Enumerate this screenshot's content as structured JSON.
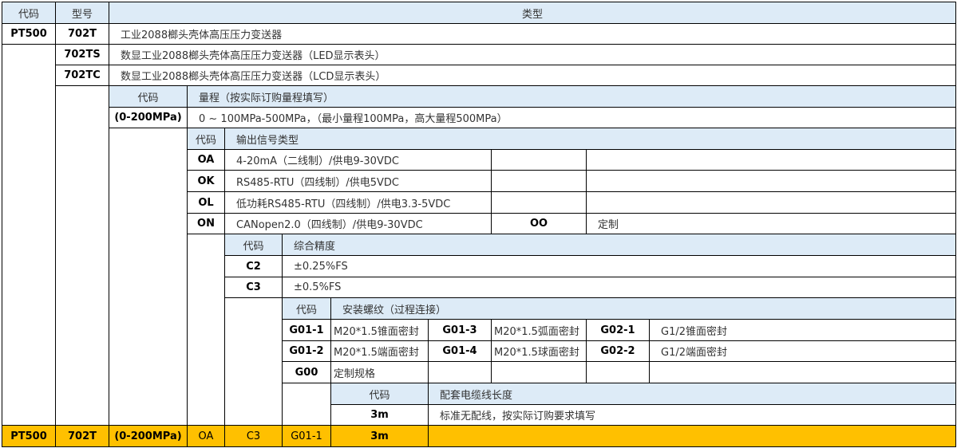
{
  "colors": {
    "header_bg": "#ddebf7",
    "example_row_bg": "#ffc000",
    "border": "#000000"
  },
  "header": {
    "code_label": "代码",
    "model_label": "型号",
    "type_label": "类型"
  },
  "series_code": "PT500",
  "models": [
    {
      "code": "702T",
      "desc": "工业2088榔头壳体高压压力变送器"
    },
    {
      "code": "702TS",
      "desc": "数显工业2088榔头壳体高压压力变送器（LED显示表头）"
    },
    {
      "code": "702TC",
      "desc": "数显工业2088榔头壳体高压压力变送器（LCD显示表头）"
    }
  ],
  "range": {
    "code_label": "代码",
    "title": "量程（按实际订购量程填写）",
    "code": "(0-200MPa)",
    "desc": "0 ~ 100MPa-500MPa，（最小量程100MPa，高大量程500MPa）"
  },
  "output": {
    "code_label": "代码",
    "title": "输出信号类型",
    "options": [
      {
        "code": "OA",
        "desc": "4-20mA（二线制）/供电9-30VDC"
      },
      {
        "code": "OK",
        "desc": "RS485-RTU（四线制）/供电5VDC"
      },
      {
        "code": "OL",
        "desc": "低功耗RS485-RTU（四线制）/供电3.3-5VDC"
      },
      {
        "code": "ON",
        "desc": "CANopen2.0（四线制）/供电9-30VDC"
      }
    ],
    "extra": {
      "code": "OO",
      "desc": "定制"
    }
  },
  "accuracy": {
    "code_label": "代码",
    "title": "综合精度",
    "options": [
      {
        "code": "C2",
        "desc": "±0.25%FS"
      },
      {
        "code": "C3",
        "desc": "±0.5%FS"
      }
    ]
  },
  "thread": {
    "code_label": "代码",
    "title": "安装螺纹（过程连接）",
    "options": [
      {
        "code": "G01-1",
        "desc": "M20*1.5锥面密封"
      },
      {
        "code": "G01-3",
        "desc": "M20*1.5弧面密封"
      },
      {
        "code": "G02-1",
        "desc": "G1/2锥面密封"
      },
      {
        "code": "G01-2",
        "desc": "M20*1.5端面密封"
      },
      {
        "code": "G01-4",
        "desc": "M20*1.5球面密封"
      },
      {
        "code": "G02-2",
        "desc": "G1/2端面密封"
      },
      {
        "code": "G00",
        "desc": "定制规格"
      }
    ]
  },
  "cable": {
    "code_label": "代码",
    "title": "配套电缆线长度",
    "options": [
      {
        "code": "3m",
        "desc": "标准无配线，按实际订购要求填写"
      }
    ]
  },
  "example": {
    "series": "PT500",
    "model": "702T",
    "range": "(0-200MPa)",
    "output": "OA",
    "accuracy": "C3",
    "thread": "G01-1",
    "cable": "3m"
  }
}
